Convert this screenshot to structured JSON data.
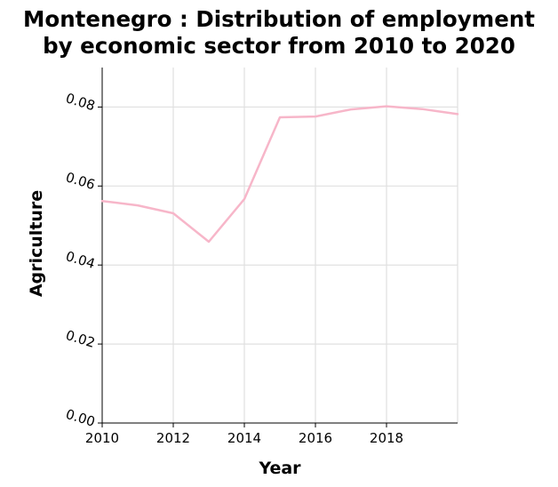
{
  "chart_data": {
    "type": "line",
    "title": "Montenegro : Distribution of employment by economic sector from 2010 to 2020",
    "title_lines": [
      "Montenegro : Distribution of employment",
      "by economic sector from 2010 to 2020"
    ],
    "xlabel": "Year",
    "ylabel": "Agriculture",
    "xlim": [
      2010,
      2020
    ],
    "ylim": [
      0,
      0.09
    ],
    "x_ticks": [
      2010,
      2012,
      2014,
      2016,
      2018
    ],
    "x_tick_labels": [
      "2010",
      "2012",
      "2014",
      "2016",
      "2018"
    ],
    "y_ticks": [
      0,
      0.02,
      0.04,
      0.06,
      0.08
    ],
    "y_tick_labels": [
      "0.00",
      "0.02",
      "0.04",
      "0.06",
      "0.08"
    ],
    "grid": true,
    "series": [
      {
        "color": "#f7b6c9",
        "x": [
          2010,
          2011,
          2012,
          2013,
          2014,
          2015,
          2016,
          2017,
          2018,
          2019,
          2020
        ],
        "y": [
          0.0562,
          0.0551,
          0.0531,
          0.0459,
          0.0567,
          0.0774,
          0.0776,
          0.0794,
          0.0802,
          0.0795,
          0.0782
        ]
      }
    ]
  }
}
